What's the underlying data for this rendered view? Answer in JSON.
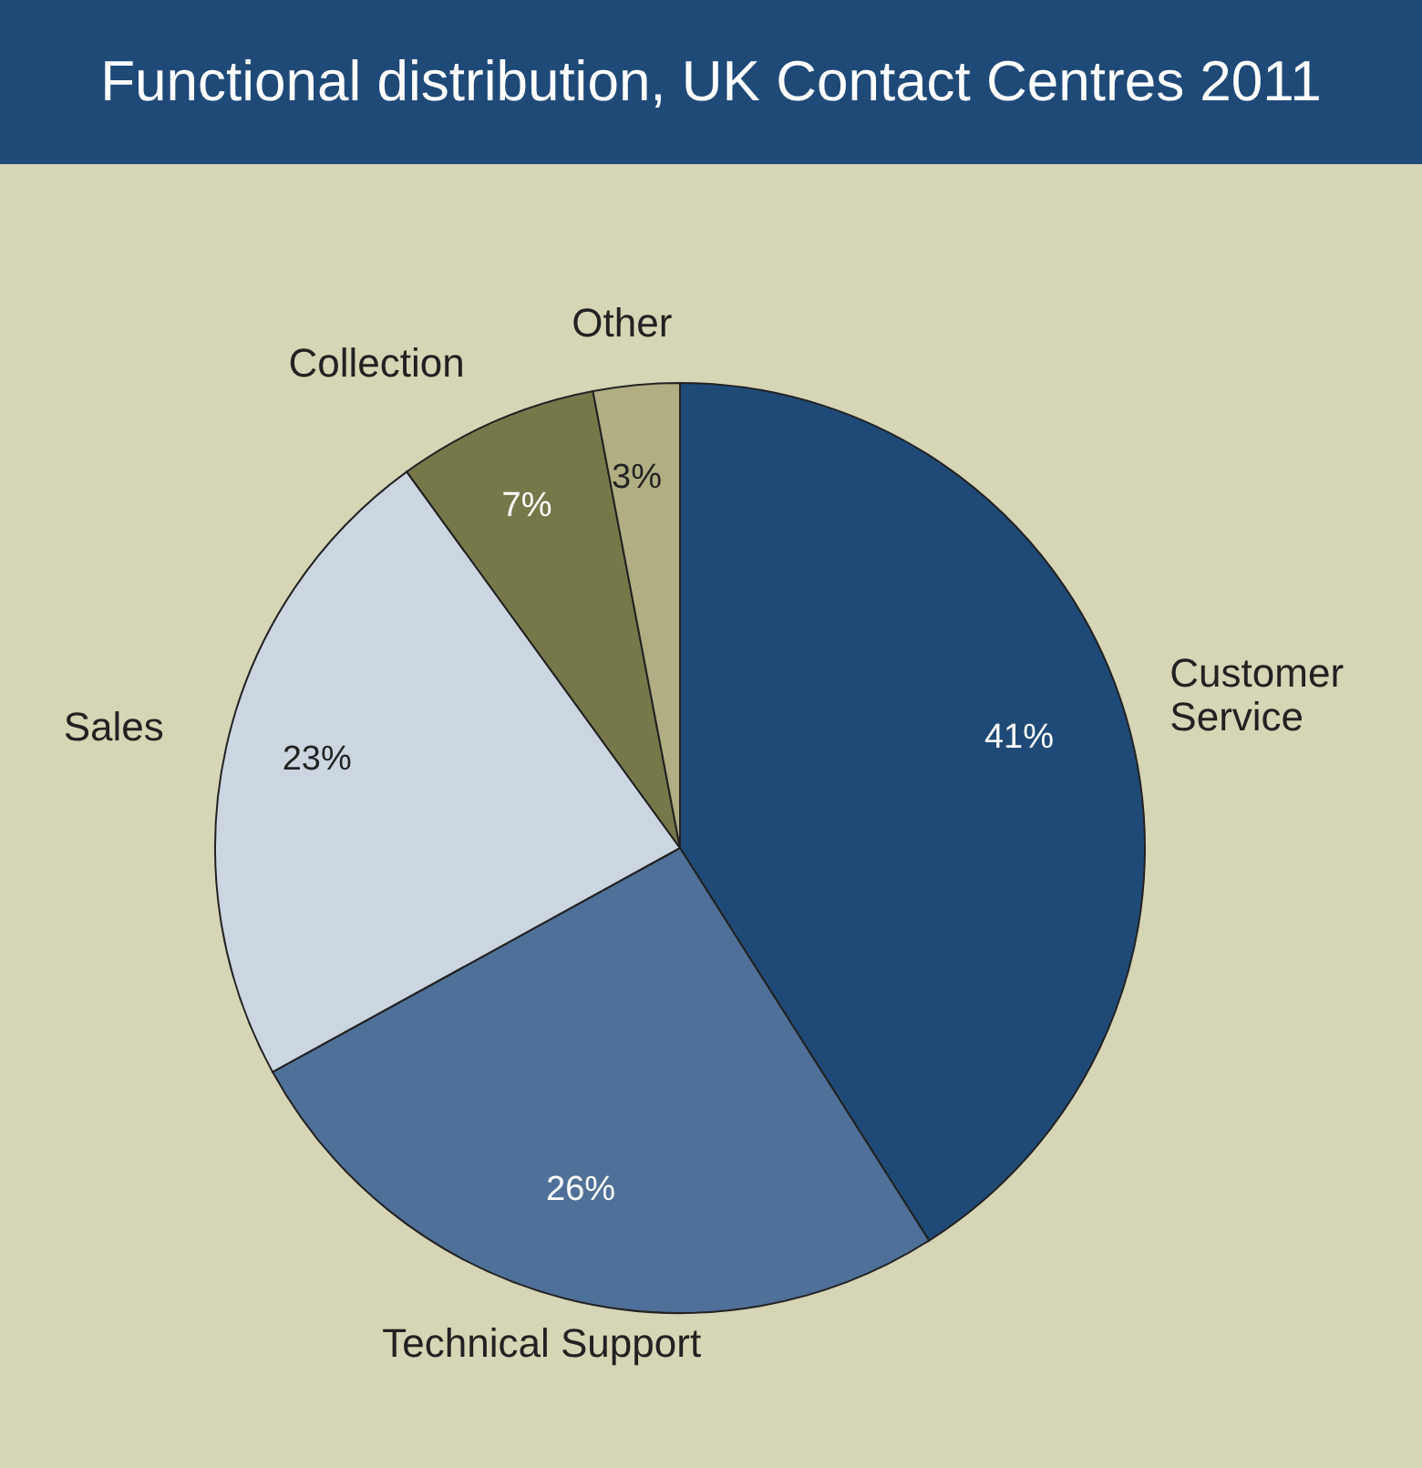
{
  "chart_data": {
    "type": "pie",
    "title": "Functional distribution, UK Contact Centres 2011",
    "categories": [
      "Customer Service",
      "Technical Support",
      "Sales",
      "Collection",
      "Other"
    ],
    "values": [
      41,
      26,
      23,
      7,
      3
    ],
    "colors": [
      "#1f4a78",
      "#4f7098",
      "#cbd6e0",
      "#77784a",
      "#b0ae82"
    ],
    "value_labels": [
      "41%",
      "26%",
      "23%",
      "7%",
      "3%"
    ]
  }
}
